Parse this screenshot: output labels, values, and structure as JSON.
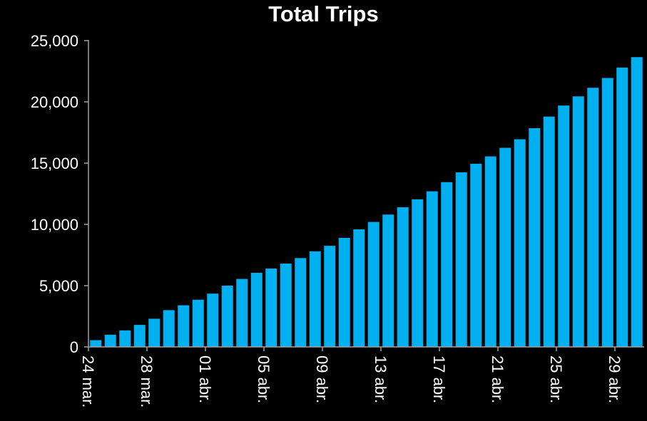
{
  "chart_data": {
    "type": "bar",
    "title": "Total Trips",
    "xlabel": "",
    "ylabel": "",
    "ylim": [
      0,
      25000
    ],
    "y_ticks": [
      "0",
      "5,000",
      "10,000",
      "15,000",
      "20,000",
      "25,000"
    ],
    "y_tick_values": [
      0,
      5000,
      10000,
      15000,
      20000,
      25000
    ],
    "grid": false,
    "categories": [
      "24 mar.",
      "25 mar.",
      "26 mar.",
      "27 mar.",
      "28 mar.",
      "29 mar.",
      "30 mar.",
      "31 mar.",
      "01 abr.",
      "02 abr.",
      "03 abr.",
      "04 abr.",
      "05 abr.",
      "06 abr.",
      "07 abr.",
      "08 abr.",
      "09 abr.",
      "10 abr.",
      "11 abr.",
      "12 abr.",
      "13 abr.",
      "14 abr.",
      "15 abr.",
      "16 abr.",
      "17 abr.",
      "18 abr.",
      "19 abr.",
      "20 abr.",
      "21 abr.",
      "22 abr.",
      "23 abr.",
      "24 abr.",
      "25 abr.",
      "26 abr.",
      "27 abr.",
      "28 abr.",
      "29 abr.",
      "30 abr."
    ],
    "x_tick_labels": [
      "24 mar.",
      "28 mar.",
      "01 abr.",
      "05 abr.",
      "09 abr.",
      "13 abr.",
      "17 abr.",
      "21 abr.",
      "25 abr.",
      "29 abr."
    ],
    "values": [
      550,
      1000,
      1350,
      1800,
      2300,
      3000,
      3400,
      3850,
      4350,
      5000,
      5550,
      6050,
      6400,
      6800,
      7250,
      7800,
      8250,
      8900,
      9600,
      10200,
      10800,
      11400,
      12050,
      12700,
      13450,
      14250,
      14950,
      15550,
      16250,
      16950,
      17850,
      18800,
      19700,
      20450,
      21150,
      21950,
      22800,
      23650
    ],
    "bar_color": "#00B0F0",
    "axis_color": "#A0A0A0",
    "background": "#000000"
  }
}
